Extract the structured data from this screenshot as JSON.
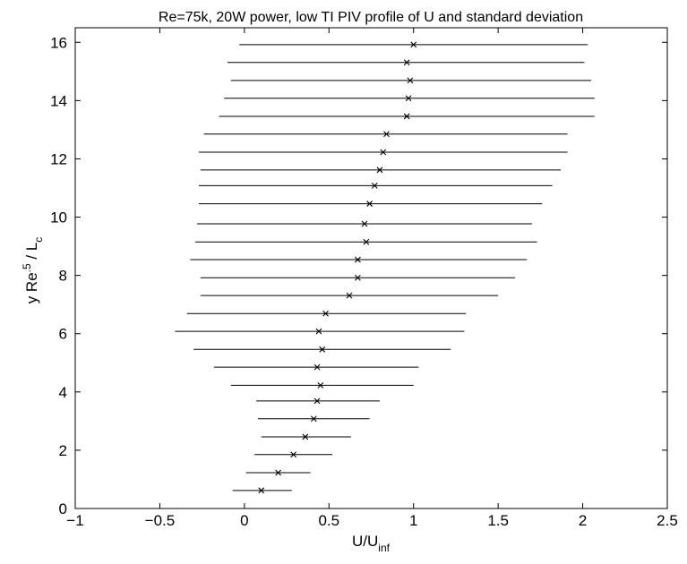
{
  "chart_data": {
    "type": "scatter",
    "title": "Re=75k, 20W power, low TI PIV profile of U and standard deviation",
    "xlabel": {
      "base": "U/U",
      "sub": "inf"
    },
    "ylabel": {
      "base": "y Re",
      "sup": ".5",
      "mid": " / L",
      "sub": "c"
    },
    "xlim": [
      -1,
      2.5
    ],
    "ylim": [
      0,
      16.5
    ],
    "xticks": [
      -1,
      -0.5,
      0,
      0.5,
      1,
      1.5,
      2,
      2.5
    ],
    "xtick_labels": [
      "−1",
      "−0.5",
      "0",
      "0.5",
      "1",
      "1.5",
      "2",
      "2.5"
    ],
    "yticks": [
      0,
      2,
      4,
      6,
      8,
      10,
      12,
      14,
      16
    ],
    "ytick_labels": [
      "0",
      "2",
      "4",
      "6",
      "8",
      "10",
      "12",
      "14",
      "16"
    ],
    "grid": false,
    "marker": "x",
    "series": [
      {
        "points": [
          {
            "y": 0.62,
            "x": 0.1,
            "xmin": -0.07,
            "xmax": 0.28
          },
          {
            "y": 1.23,
            "x": 0.2,
            "xmin": 0.01,
            "xmax": 0.39
          },
          {
            "y": 1.85,
            "x": 0.29,
            "xmin": 0.06,
            "xmax": 0.52
          },
          {
            "y": 2.46,
            "x": 0.36,
            "xmin": 0.1,
            "xmax": 0.63
          },
          {
            "y": 3.08,
            "x": 0.41,
            "xmin": 0.08,
            "xmax": 0.74
          },
          {
            "y": 3.69,
            "x": 0.43,
            "xmin": 0.07,
            "xmax": 0.8
          },
          {
            "y": 4.23,
            "x": 0.45,
            "xmin": -0.08,
            "xmax": 1.0
          },
          {
            "y": 4.85,
            "x": 0.43,
            "xmin": -0.18,
            "xmax": 1.03
          },
          {
            "y": 5.46,
            "x": 0.46,
            "xmin": -0.3,
            "xmax": 1.22
          },
          {
            "y": 6.08,
            "x": 0.44,
            "xmin": -0.41,
            "xmax": 1.3
          },
          {
            "y": 6.69,
            "x": 0.48,
            "xmin": -0.34,
            "xmax": 1.31
          },
          {
            "y": 7.31,
            "x": 0.62,
            "xmin": -0.26,
            "xmax": 1.5
          },
          {
            "y": 7.92,
            "x": 0.67,
            "xmin": -0.26,
            "xmax": 1.6
          },
          {
            "y": 8.54,
            "x": 0.67,
            "xmin": -0.32,
            "xmax": 1.67
          },
          {
            "y": 9.15,
            "x": 0.72,
            "xmin": -0.29,
            "xmax": 1.73
          },
          {
            "y": 9.77,
            "x": 0.71,
            "xmin": -0.28,
            "xmax": 1.7
          },
          {
            "y": 10.46,
            "x": 0.74,
            "xmin": -0.27,
            "xmax": 1.76
          },
          {
            "y": 11.08,
            "x": 0.77,
            "xmin": -0.27,
            "xmax": 1.82
          },
          {
            "y": 11.62,
            "x": 0.8,
            "xmin": -0.26,
            "xmax": 1.87
          },
          {
            "y": 12.23,
            "x": 0.82,
            "xmin": -0.27,
            "xmax": 1.91
          },
          {
            "y": 12.85,
            "x": 0.84,
            "xmin": -0.24,
            "xmax": 1.91
          },
          {
            "y": 13.46,
            "x": 0.96,
            "xmin": -0.15,
            "xmax": 2.07
          },
          {
            "y": 14.08,
            "x": 0.97,
            "xmin": -0.12,
            "xmax": 2.07
          },
          {
            "y": 14.69,
            "x": 0.98,
            "xmin": -0.08,
            "xmax": 2.05
          },
          {
            "y": 15.31,
            "x": 0.96,
            "xmin": -0.1,
            "xmax": 2.01
          },
          {
            "y": 15.92,
            "x": 1.0,
            "xmin": -0.03,
            "xmax": 2.03
          }
        ]
      }
    ]
  }
}
